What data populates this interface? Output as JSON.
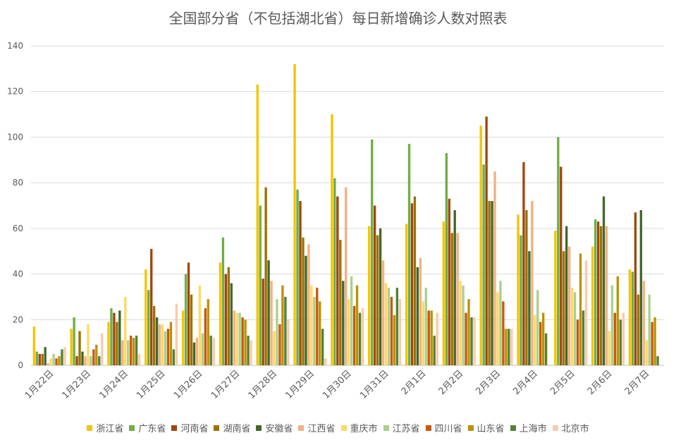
{
  "chart_data": {
    "type": "bar",
    "title": "全国部分省（不包括湖北省）每日新增确诊人数对照表",
    "xlabel": "",
    "ylabel": "",
    "ylim": [
      0,
      140
    ],
    "yticks": [
      0,
      20,
      40,
      60,
      80,
      100,
      120,
      140
    ],
    "grid": true,
    "legend_position": "bottom",
    "categories": [
      "1月22日",
      "1月23日",
      "1月24日",
      "1月25日",
      "1月26日",
      "1月27日",
      "1月28日",
      "1月29日",
      "1月30日",
      "1月31日",
      "2月1日",
      "2月2日",
      "2月3日",
      "2月4日",
      "2月5日",
      "2月6日",
      "2月7日"
    ],
    "series": [
      {
        "name": "浙江省",
        "color": "#F5C400",
        "values": [
          17,
          16,
          19,
          42,
          24,
          45,
          123,
          132,
          110,
          61,
          62,
          63,
          105,
          66,
          59,
          52,
          42
        ]
      },
      {
        "name": "广东省",
        "color": "#70AD47",
        "values": [
          6,
          21,
          25,
          33,
          40,
          56,
          70,
          77,
          82,
          99,
          97,
          93,
          88,
          57,
          100,
          64,
          41
        ]
      },
      {
        "name": "河南省",
        "color": "#9E480E",
        "values": [
          5,
          4,
          23,
          51,
          45,
          40,
          38,
          72,
          74,
          70,
          71,
          73,
          109,
          89,
          87,
          63,
          67
        ]
      },
      {
        "name": "湖南省",
        "color": "#997300",
        "values": [
          5,
          15,
          19,
          26,
          31,
          43,
          78,
          56,
          55,
          57,
          74,
          58,
          72,
          68,
          50,
          61,
          31
        ]
      },
      {
        "name": "安徽省",
        "color": "#43682B",
        "values": [
          8,
          6,
          24,
          21,
          10,
          36,
          46,
          48,
          37,
          60,
          43,
          68,
          72,
          50,
          61,
          74,
          68
        ]
      },
      {
        "name": "江西省",
        "color": "#F4B183",
        "values": [
          1,
          4,
          11,
          18,
          12,
          24,
          37,
          53,
          78,
          46,
          47,
          58,
          85,
          72,
          52,
          61,
          37
        ]
      },
      {
        "name": "重庆市",
        "color": "#FFD966",
        "values": [
          3,
          18,
          30,
          18,
          35,
          23,
          15,
          35,
          29,
          36,
          28,
          37,
          32,
          22,
          34,
          15,
          11
        ]
      },
      {
        "name": "江苏省",
        "color": "#A9D18E",
        "values": [
          5,
          4,
          11,
          15,
          14,
          23,
          29,
          30,
          39,
          34,
          34,
          35,
          37,
          33,
          32,
          35,
          31
        ]
      },
      {
        "name": "四川省",
        "color": "#C55A11",
        "values": [
          3,
          7,
          13,
          16,
          25,
          21,
          18,
          34,
          26,
          30,
          24,
          23,
          28,
          19,
          20,
          23,
          19
        ]
      },
      {
        "name": "山东省",
        "color": "#BF9000",
        "values": [
          4,
          9,
          12,
          19,
          29,
          20,
          35,
          28,
          35,
          22,
          24,
          29,
          16,
          23,
          49,
          39,
          21
        ]
      },
      {
        "name": "上海市",
        "color": "#548235",
        "values": [
          7,
          4,
          13,
          7,
          13,
          13,
          30,
          16,
          23,
          34,
          13,
          21,
          16,
          14,
          24,
          20,
          4
        ]
      },
      {
        "name": "北京市",
        "color": "#F8CBAD",
        "values": [
          8,
          14,
          5,
          27,
          12,
          11,
          20,
          3,
          25,
          29,
          23,
          21,
          16,
          0,
          46,
          23,
          0
        ]
      }
    ]
  }
}
